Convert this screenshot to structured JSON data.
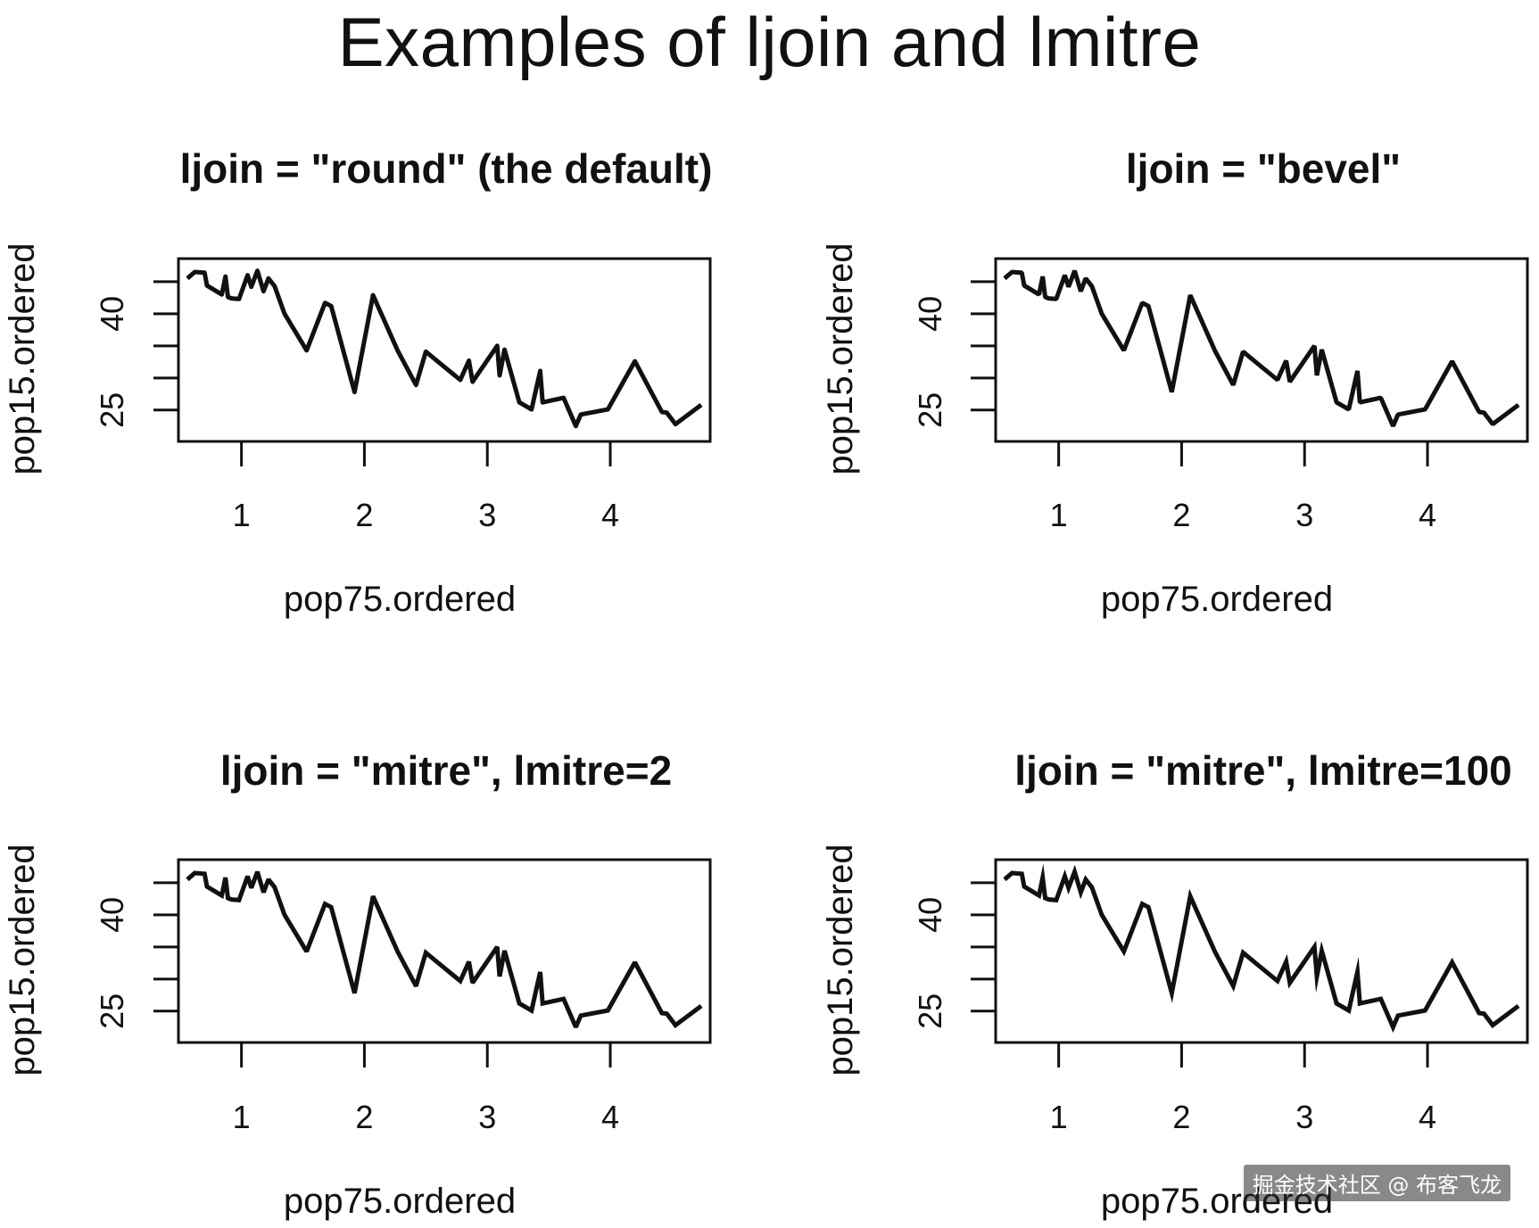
{
  "title": "Examples of ljoin and lmitre",
  "watermark": "掘金技术社区 @ 布客飞龙",
  "chart_data": [
    {
      "type": "line",
      "title": "ljoin = \"round\" (the default)",
      "xlabel": "pop75.ordered",
      "ylabel": "pop15.ordered",
      "xlim": [
        0.56,
        4.74
      ],
      "ylim": [
        21.5,
        47.2
      ],
      "xticks": [
        "1",
        "2",
        "3",
        "4"
      ],
      "yticks": [
        "25",
        "30",
        "35",
        "40",
        "45"
      ],
      "ytick_labels": [
        "25",
        "40"
      ],
      "linejoin": "round",
      "series": [
        {
          "x": [
            0.56,
            0.62,
            0.7,
            0.72,
            0.84,
            0.87,
            0.89,
            0.92,
            0.98,
            1.05,
            1.08,
            1.13,
            1.18,
            1.22,
            1.27,
            1.35,
            1.53,
            1.68,
            1.73,
            1.92,
            2.07,
            2.27,
            2.42,
            2.5,
            2.62,
            2.78,
            2.85,
            2.88,
            3.08,
            3.1,
            3.14,
            3.26,
            3.36,
            3.43,
            3.45,
            3.62,
            3.72,
            3.76,
            3.98,
            4.2,
            4.42,
            4.46,
            4.53,
            4.74
          ],
          "y": [
            45.5,
            46.5,
            46.4,
            44.4,
            43.0,
            45.8,
            42.6,
            42.4,
            42.3,
            46.0,
            44.2,
            46.7,
            43.5,
            45.5,
            44.3,
            40.0,
            34.3,
            41.7,
            41.2,
            27.8,
            42.9,
            34.3,
            28.9,
            34.1,
            32.2,
            29.7,
            32.7,
            29.4,
            35.0,
            30.4,
            34.4,
            26.2,
            25.1,
            31.1,
            26.2,
            26.9,
            22.5,
            24.3,
            25.1,
            32.6,
            24.7,
            24.6,
            22.8,
            25.8
          ]
        }
      ]
    },
    {
      "type": "line",
      "title": "ljoin = \"bevel\"",
      "xlabel": "pop75.ordered",
      "ylabel": "pop15.ordered",
      "xlim": [
        0.56,
        4.74
      ],
      "ylim": [
        21.5,
        47.2
      ],
      "xticks": [
        "1",
        "2",
        "3",
        "4"
      ],
      "yticks": [
        "25",
        "30",
        "35",
        "40",
        "45"
      ],
      "ytick_labels": [
        "25",
        "40"
      ],
      "linejoin": "bevel",
      "series": [
        {
          "x": [
            0.56,
            0.62,
            0.7,
            0.72,
            0.84,
            0.87,
            0.89,
            0.92,
            0.98,
            1.05,
            1.08,
            1.13,
            1.18,
            1.22,
            1.27,
            1.35,
            1.53,
            1.68,
            1.73,
            1.92,
            2.07,
            2.27,
            2.42,
            2.5,
            2.62,
            2.78,
            2.85,
            2.88,
            3.08,
            3.1,
            3.14,
            3.26,
            3.36,
            3.43,
            3.45,
            3.62,
            3.72,
            3.76,
            3.98,
            4.2,
            4.42,
            4.46,
            4.53,
            4.74
          ],
          "y": [
            45.5,
            46.5,
            46.4,
            44.4,
            43.0,
            45.8,
            42.6,
            42.4,
            42.3,
            46.0,
            44.2,
            46.7,
            43.5,
            45.5,
            44.3,
            40.0,
            34.3,
            41.7,
            41.2,
            27.8,
            42.9,
            34.3,
            28.9,
            34.1,
            32.2,
            29.7,
            32.7,
            29.4,
            35.0,
            30.4,
            34.4,
            26.2,
            25.1,
            31.1,
            26.2,
            26.9,
            22.5,
            24.3,
            25.1,
            32.6,
            24.7,
            24.6,
            22.8,
            25.8
          ]
        }
      ]
    },
    {
      "type": "line",
      "title": "ljoin = \"mitre\", lmitre=2",
      "xlabel": "pop75.ordered",
      "ylabel": "pop15.ordered",
      "xlim": [
        0.56,
        4.74
      ],
      "ylim": [
        21.5,
        47.2
      ],
      "xticks": [
        "1",
        "2",
        "3",
        "4"
      ],
      "yticks": [
        "25",
        "30",
        "35",
        "40",
        "45"
      ],
      "ytick_labels": [
        "25",
        "40"
      ],
      "linejoin": "miter",
      "lmitre": 2,
      "series": [
        {
          "x": [
            0.56,
            0.62,
            0.7,
            0.72,
            0.84,
            0.87,
            0.89,
            0.92,
            0.98,
            1.05,
            1.08,
            1.13,
            1.18,
            1.22,
            1.27,
            1.35,
            1.53,
            1.68,
            1.73,
            1.92,
            2.07,
            2.27,
            2.42,
            2.5,
            2.62,
            2.78,
            2.85,
            2.88,
            3.08,
            3.1,
            3.14,
            3.26,
            3.36,
            3.43,
            3.45,
            3.62,
            3.72,
            3.76,
            3.98,
            4.2,
            4.42,
            4.46,
            4.53,
            4.74
          ],
          "y": [
            45.5,
            46.5,
            46.4,
            44.4,
            43.0,
            45.8,
            42.6,
            42.4,
            42.3,
            46.0,
            44.2,
            46.7,
            43.5,
            45.5,
            44.3,
            40.0,
            34.3,
            41.7,
            41.2,
            27.8,
            42.9,
            34.3,
            28.9,
            34.1,
            32.2,
            29.7,
            32.7,
            29.4,
            35.0,
            30.4,
            34.4,
            26.2,
            25.1,
            31.1,
            26.2,
            26.9,
            22.5,
            24.3,
            25.1,
            32.6,
            24.7,
            24.6,
            22.8,
            25.8
          ]
        }
      ]
    },
    {
      "type": "line",
      "title": "ljoin = \"mitre\", lmitre=100",
      "xlabel": "pop75.ordered",
      "ylabel": "pop15.ordered",
      "xlim": [
        0.56,
        4.74
      ],
      "ylim": [
        21.5,
        47.2
      ],
      "xticks": [
        "1",
        "2",
        "3",
        "4"
      ],
      "yticks": [
        "25",
        "30",
        "35",
        "40",
        "45"
      ],
      "ytick_labels": [
        "25",
        "40"
      ],
      "linejoin": "miter",
      "lmitre": 100,
      "series": [
        {
          "x": [
            0.56,
            0.62,
            0.7,
            0.72,
            0.84,
            0.87,
            0.89,
            0.92,
            0.98,
            1.05,
            1.08,
            1.13,
            1.18,
            1.22,
            1.27,
            1.35,
            1.53,
            1.68,
            1.73,
            1.92,
            2.07,
            2.27,
            2.42,
            2.5,
            2.62,
            2.78,
            2.85,
            2.88,
            3.08,
            3.1,
            3.14,
            3.26,
            3.36,
            3.43,
            3.45,
            3.62,
            3.72,
            3.76,
            3.98,
            4.2,
            4.42,
            4.46,
            4.53,
            4.74
          ],
          "y": [
            45.5,
            46.5,
            46.4,
            44.4,
            43.0,
            45.8,
            42.6,
            42.4,
            42.3,
            46.0,
            44.2,
            46.7,
            43.5,
            45.5,
            44.3,
            40.0,
            34.3,
            41.7,
            41.2,
            27.8,
            42.9,
            34.3,
            28.9,
            34.1,
            32.2,
            29.7,
            32.7,
            29.4,
            35.0,
            30.4,
            34.4,
            26.2,
            25.1,
            31.1,
            26.2,
            26.9,
            22.5,
            24.3,
            25.1,
            32.6,
            24.7,
            24.6,
            22.8,
            25.8
          ]
        }
      ]
    }
  ]
}
